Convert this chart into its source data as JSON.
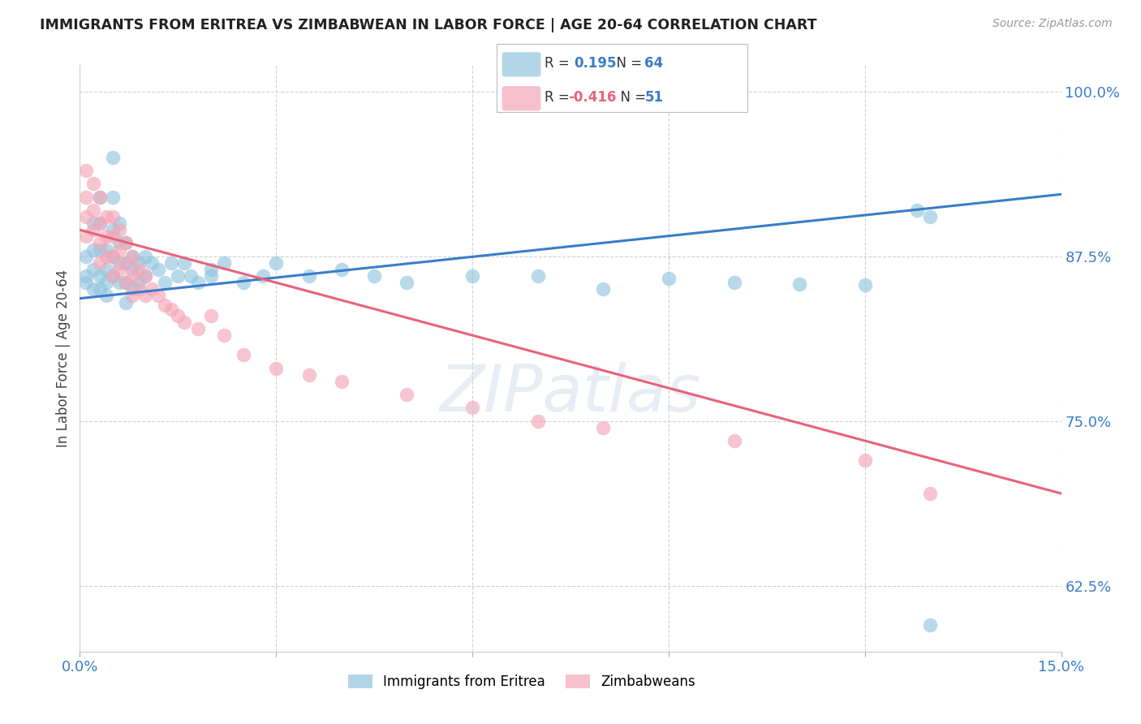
{
  "title": "IMMIGRANTS FROM ERITREA VS ZIMBABWEAN IN LABOR FORCE | AGE 20-64 CORRELATION CHART",
  "source": "Source: ZipAtlas.com",
  "ylabel": "In Labor Force | Age 20-64",
  "xlim": [
    0.0,
    0.15
  ],
  "ylim": [
    0.575,
    1.02
  ],
  "ytick_vals": [
    0.625,
    0.75,
    0.875,
    1.0
  ],
  "ytick_labels": [
    "62.5%",
    "75.0%",
    "87.5%",
    "100.0%"
  ],
  "xtick_vals": [
    0.0,
    0.03,
    0.06,
    0.09,
    0.12,
    0.15
  ],
  "xtick_labels": [
    "0.0%",
    "",
    "",
    "",
    "",
    "15.0%"
  ],
  "blue_color": "#92c5de",
  "pink_color": "#f4a6b8",
  "blue_line_color": "#3a7dc9",
  "pink_line_color": "#e8637a",
  "watermark": "ZIPatlas",
  "blue_line_x": [
    0.0,
    0.15
  ],
  "blue_line_y": [
    0.843,
    0.922
  ],
  "pink_line_x": [
    0.0,
    0.15
  ],
  "pink_line_y": [
    0.895,
    0.695
  ],
  "eritrea_x": [
    0.001,
    0.001,
    0.001,
    0.002,
    0.002,
    0.002,
    0.002,
    0.003,
    0.003,
    0.003,
    0.003,
    0.003,
    0.004,
    0.004,
    0.004,
    0.004,
    0.005,
    0.005,
    0.005,
    0.005,
    0.005,
    0.006,
    0.006,
    0.006,
    0.006,
    0.007,
    0.007,
    0.007,
    0.007,
    0.008,
    0.008,
    0.008,
    0.009,
    0.009,
    0.01,
    0.01,
    0.011,
    0.012,
    0.013,
    0.014,
    0.015,
    0.016,
    0.017,
    0.018,
    0.02,
    0.022,
    0.025,
    0.028,
    0.03,
    0.035,
    0.04,
    0.045,
    0.05,
    0.06,
    0.07,
    0.08,
    0.09,
    0.1,
    0.11,
    0.12,
    0.128,
    0.13,
    0.13,
    0.02
  ],
  "eritrea_y": [
    0.875,
    0.86,
    0.855,
    0.9,
    0.88,
    0.865,
    0.85,
    0.92,
    0.9,
    0.88,
    0.86,
    0.85,
    0.88,
    0.865,
    0.855,
    0.845,
    0.95,
    0.92,
    0.895,
    0.875,
    0.86,
    0.9,
    0.885,
    0.87,
    0.855,
    0.885,
    0.87,
    0.855,
    0.84,
    0.875,
    0.865,
    0.85,
    0.87,
    0.855,
    0.875,
    0.86,
    0.87,
    0.865,
    0.855,
    0.87,
    0.86,
    0.87,
    0.86,
    0.855,
    0.86,
    0.87,
    0.855,
    0.86,
    0.87,
    0.86,
    0.865,
    0.86,
    0.855,
    0.86,
    0.86,
    0.85,
    0.858,
    0.855,
    0.854,
    0.853,
    0.91,
    0.905,
    0.595,
    0.865
  ],
  "zimbabwe_x": [
    0.001,
    0.001,
    0.001,
    0.001,
    0.002,
    0.002,
    0.002,
    0.003,
    0.003,
    0.003,
    0.003,
    0.004,
    0.004,
    0.004,
    0.005,
    0.005,
    0.005,
    0.005,
    0.006,
    0.006,
    0.006,
    0.007,
    0.007,
    0.007,
    0.008,
    0.008,
    0.008,
    0.009,
    0.009,
    0.01,
    0.01,
    0.011,
    0.012,
    0.013,
    0.014,
    0.015,
    0.016,
    0.018,
    0.02,
    0.022,
    0.025,
    0.03,
    0.035,
    0.04,
    0.05,
    0.06,
    0.07,
    0.08,
    0.1,
    0.12,
    0.13
  ],
  "zimbabwe_y": [
    0.94,
    0.92,
    0.905,
    0.89,
    0.93,
    0.91,
    0.895,
    0.92,
    0.9,
    0.885,
    0.87,
    0.905,
    0.89,
    0.875,
    0.905,
    0.89,
    0.875,
    0.86,
    0.895,
    0.88,
    0.865,
    0.885,
    0.87,
    0.855,
    0.875,
    0.86,
    0.845,
    0.865,
    0.85,
    0.86,
    0.845,
    0.85,
    0.845,
    0.838,
    0.835,
    0.83,
    0.825,
    0.82,
    0.83,
    0.815,
    0.8,
    0.79,
    0.785,
    0.78,
    0.77,
    0.76,
    0.75,
    0.745,
    0.735,
    0.72,
    0.695
  ]
}
